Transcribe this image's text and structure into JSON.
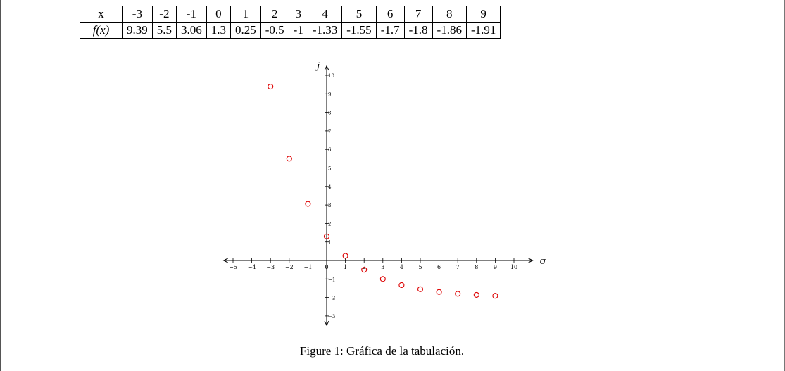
{
  "table": {
    "row_headers": [
      "x",
      "f(x)"
    ],
    "x": [
      "-3",
      "-2",
      "-1",
      "0",
      "1",
      "2",
      "3",
      "4",
      "5",
      "6",
      "7",
      "8",
      "9"
    ],
    "fx": [
      "9.39",
      "5.5",
      "3.06",
      "1.3",
      "0.25",
      "-0.5",
      "-1",
      "-1.33",
      "-1.55",
      "-1.7",
      "-1.8",
      "-1.86",
      "-1.91"
    ]
  },
  "chart_data": {
    "type": "scatter",
    "x": [
      -3,
      -2,
      -1,
      0,
      1,
      2,
      3,
      4,
      5,
      6,
      7,
      8,
      9
    ],
    "y": [
      9.39,
      5.5,
      3.06,
      1.3,
      0.25,
      -0.5,
      -1,
      -1.33,
      -1.55,
      -1.7,
      -1.8,
      -1.86,
      -1.91
    ],
    "xlabel": "σ",
    "ylabel": "j",
    "xlim": [
      -5.5,
      11
    ],
    "ylim": [
      -3.5,
      10.5
    ],
    "x_ticks": [
      -5,
      -4,
      -3,
      -2,
      -1,
      0,
      1,
      2,
      3,
      4,
      5,
      6,
      7,
      8,
      9,
      10
    ],
    "y_ticks": [
      -3,
      -2,
      -1,
      1,
      2,
      3,
      4,
      5,
      6,
      7,
      8,
      9,
      10
    ],
    "marker": "open-circle",
    "marker_color": "#dd0000",
    "grid": false
  },
  "caption": "Figure 1: Gráfica de la tabulación."
}
